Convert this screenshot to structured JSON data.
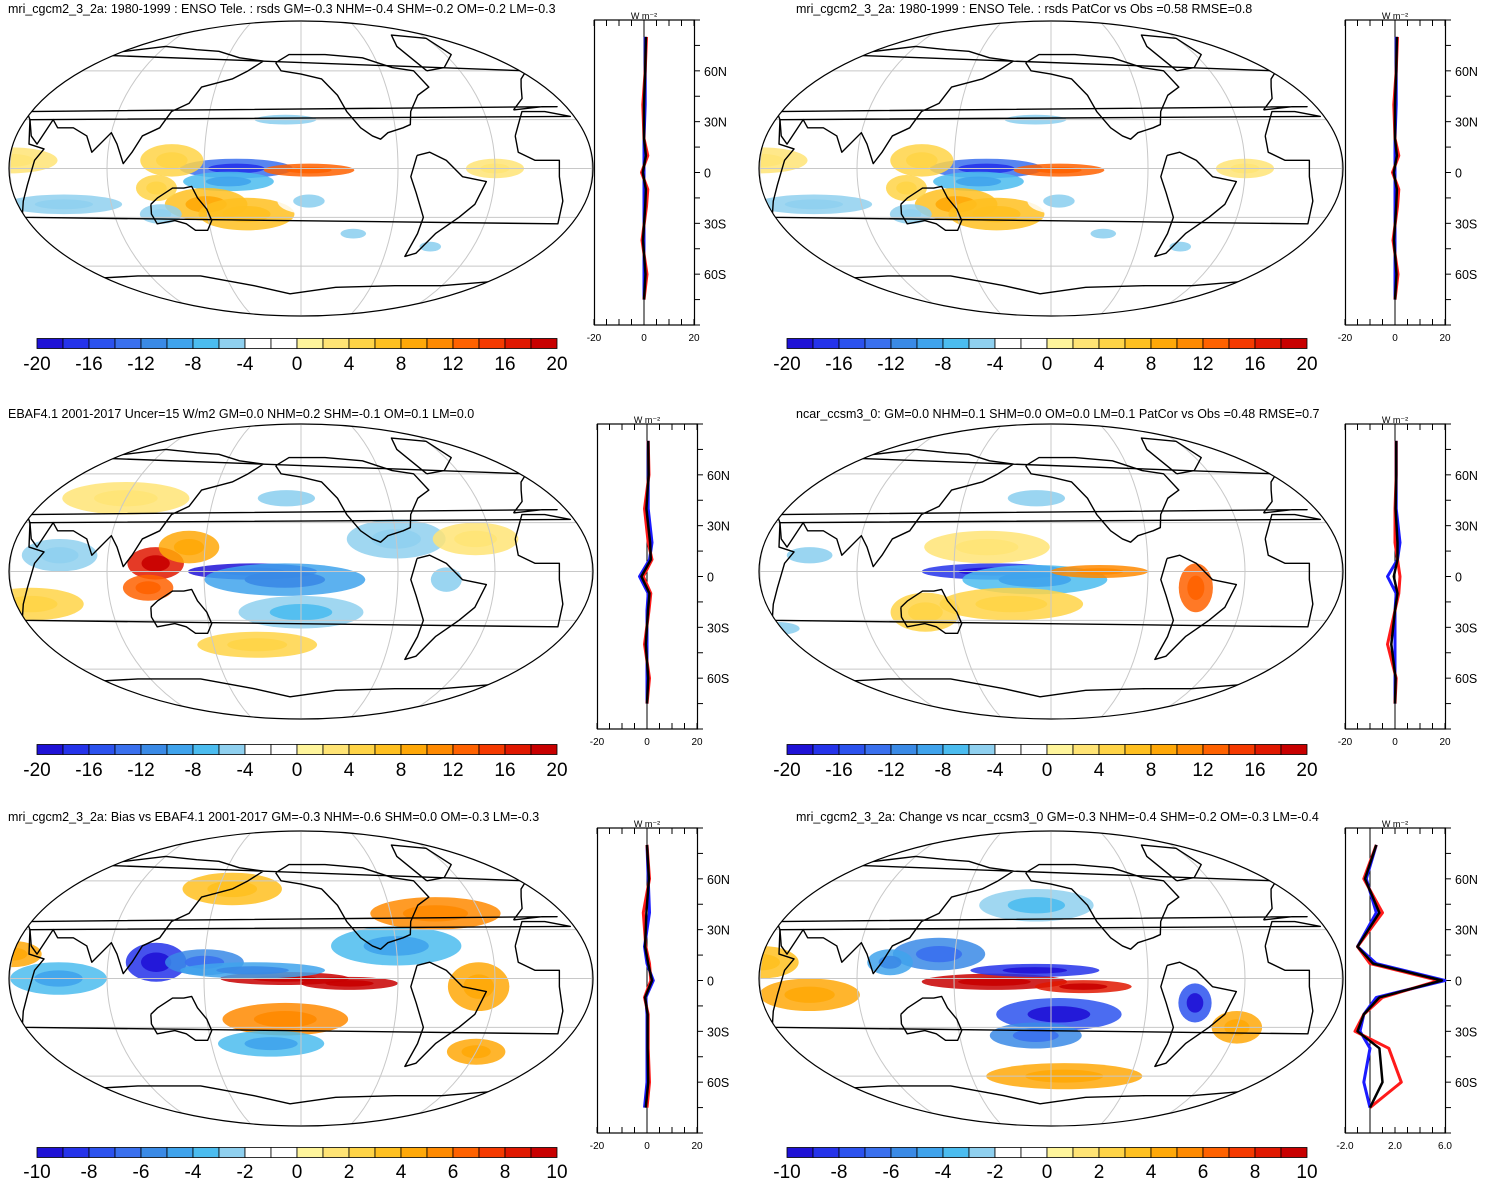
{
  "figure": "ENSO teleconnection maps of rsds",
  "colors": {
    "palette": [
      "#1f12d6",
      "#2533ea",
      "#2c52ee",
      "#3a70ee",
      "#3a8ae6",
      "#3fa3ec",
      "#4bbcef",
      "#8fd0ef",
      "#ffffff",
      "#ffffff",
      "#fff59c",
      "#ffe475",
      "#ffd447",
      "#ffc020",
      "#ffa808",
      "#ff8a00",
      "#ff6200",
      "#f53a00",
      "#e01800",
      "#c80000"
    ],
    "coast": "#000000",
    "grid": "#c8c8c8",
    "zonal_model": "#ff1a1a",
    "zonal_obs": "#1a1aff",
    "zonal_third": "#000000"
  },
  "panels": [
    {
      "id": "p1",
      "title": "mri_cgcm2_3_2a: 1980-1999 : ENSO Tele. : rsds GM=-0.3 NHM=-0.4 SHM=-0.2 OM=-0.2 LM=-0.3",
      "colorbar_labels": [
        "-20",
        "-16",
        "-12",
        "-8",
        "-4",
        "0",
        "4",
        "8",
        "12",
        "16",
        "20"
      ],
      "zonal": {
        "unit": "W m⁻²",
        "lat_labels": [
          "60N",
          "30N",
          "0",
          "30S",
          "60S"
        ],
        "x_labels": [
          "-20",
          "0",
          "20"
        ],
        "xlim": [
          -20,
          20
        ]
      }
    },
    {
      "id": "p2",
      "title": "mri_cgcm2_3_2a: 1980-1999 : ENSO Tele. : rsds PatCor vs Obs =0.58 RMSE=0.8",
      "colorbar_labels": [
        "-20",
        "-16",
        "-12",
        "-8",
        "-4",
        "0",
        "4",
        "8",
        "12",
        "16",
        "20"
      ],
      "zonal": {
        "unit": "W m⁻²",
        "lat_labels": [
          "60N",
          "30N",
          "0",
          "30S",
          "60S"
        ],
        "x_labels": [
          "-20",
          "0",
          "20"
        ],
        "xlim": [
          -20,
          20
        ]
      }
    },
    {
      "id": "p3",
      "title": "EBAF4.1 2001-2017 Uncer=15 W/m2 GM=0.0 NHM=0.2 SHM=-0.1 OM=0.1 LM=0.0",
      "colorbar_labels": [
        "-20",
        "-16",
        "-12",
        "-8",
        "-4",
        "0",
        "4",
        "8",
        "12",
        "16",
        "20"
      ],
      "zonal": {
        "unit": "W m⁻²",
        "lat_labels": [
          "60N",
          "30N",
          "0",
          "30S",
          "60S"
        ],
        "x_labels": [
          "-20",
          "0",
          "20"
        ],
        "xlim": [
          -20,
          20
        ]
      }
    },
    {
      "id": "p4",
      "title": "ncar_ccsm3_0: GM=0.0 NHM=0.1 SHM=0.0 OM=0.0 LM=0.1 PatCor vs Obs =0.48 RMSE=0.7",
      "colorbar_labels": [
        "-20",
        "-16",
        "-12",
        "-8",
        "-4",
        "0",
        "4",
        "8",
        "12",
        "16",
        "20"
      ],
      "zonal": {
        "unit": "W m⁻²",
        "lat_labels": [
          "60N",
          "30N",
          "0",
          "30S",
          "60S"
        ],
        "x_labels": [
          "-20",
          "0",
          "20"
        ],
        "xlim": [
          -20,
          20
        ]
      }
    },
    {
      "id": "p5",
      "title": "mri_cgcm2_3_2a: Bias vs EBAF4.1 2001-2017 GM=-0.3 NHM=-0.6 SHM=0.0 OM=-0.3 LM=-0.3",
      "colorbar_labels": [
        "-10",
        "-8",
        "-6",
        "-4",
        "-2",
        "0",
        "2",
        "4",
        "6",
        "8",
        "10"
      ],
      "zonal": {
        "unit": "W m⁻²",
        "lat_labels": [
          "60N",
          "30N",
          "0",
          "30S",
          "60S"
        ],
        "x_labels": [
          "-20",
          "0",
          "20"
        ],
        "xlim": [
          -20,
          20
        ]
      }
    },
    {
      "id": "p6",
      "title": "mri_cgcm2_3_2a: Change vs ncar_ccsm3_0 GM=-0.3 NHM=-0.4 SHM=-0.2 OM=-0.3 LM=-0.4",
      "colorbar_labels": [
        "-10",
        "-8",
        "-6",
        "-4",
        "-2",
        "0",
        "2",
        "4",
        "6",
        "8",
        "10"
      ],
      "zonal": {
        "unit": "W m⁻²",
        "lat_labels": [
          "60N",
          "30N",
          "0",
          "30S",
          "60S"
        ],
        "x_labels": [
          "-2.0",
          "2.0",
          "6.0"
        ],
        "xlim": [
          -2,
          6
        ]
      }
    }
  ],
  "chart_data": [
    {
      "type": "heatmap",
      "title": "mri_cgcm2_3_2a: 1980-1999 : ENSO Tele. : rsds GM=-0.3 NHM=-0.4 SHM=-0.2 OM=-0.2 LM=-0.3",
      "colorbar_ticks": [
        -20,
        -16,
        -12,
        -8,
        -4,
        0,
        4,
        8,
        12,
        16,
        20
      ],
      "features": [
        [
          170,
          0,
          35,
          6,
          -14
        ],
        [
          165,
          -8,
          28,
          6,
          -8
        ],
        [
          215,
          -1,
          28,
          4,
          12
        ],
        [
          130,
          5,
          20,
          10,
          5
        ],
        [
          150,
          -22,
          25,
          10,
          7
        ],
        [
          175,
          -28,
          30,
          10,
          6
        ],
        [
          120,
          -12,
          12,
          8,
          5
        ],
        [
          60,
          -22,
          35,
          6,
          -5
        ],
        [
          120,
          -28,
          12,
          6,
          -5
        ],
        [
          200,
          30,
          40,
          6,
          -4
        ],
        [
          215,
          -20,
          20,
          8,
          -4
        ],
        [
          30,
          5,
          30,
          8,
          3
        ],
        [
          330,
          0,
          18,
          6,
          3
        ],
        [
          245,
          -40,
          18,
          6,
          -4
        ],
        [
          300,
          -48,
          18,
          6,
          -4
        ]
      ],
      "zonal_mean": {
        "lat": [
          80,
          60,
          40,
          20,
          10,
          0,
          -10,
          -20,
          -40,
          -60,
          -75
        ],
        "model": [
          1.0,
          0.5,
          -0.5,
          0.0,
          1.5,
          -1.0,
          1.5,
          1.0,
          -0.8,
          1.2,
          0.0
        ],
        "obs": [
          0.5,
          0.5,
          0.5,
          0.0,
          0.0,
          0.0,
          0.0,
          0.0,
          0.0,
          0.0,
          0.0
        ]
      }
    },
    {
      "type": "heatmap",
      "title": "mri_cgcm2_3_2a: 1980-1999 : ENSO Tele. : rsds PatCor vs Obs =0.58 RMSE=0.8",
      "colorbar_ticks": [
        -20,
        -16,
        -12,
        -8,
        -4,
        0,
        4,
        8,
        12,
        16,
        20
      ],
      "features": [
        [
          170,
          0,
          35,
          6,
          -14
        ],
        [
          165,
          -8,
          28,
          6,
          -8
        ],
        [
          215,
          -1,
          28,
          4,
          12
        ],
        [
          130,
          5,
          20,
          10,
          5
        ],
        [
          150,
          -22,
          25,
          10,
          7
        ],
        [
          175,
          -28,
          30,
          10,
          6
        ],
        [
          120,
          -12,
          12,
          8,
          5
        ],
        [
          60,
          -22,
          35,
          6,
          -5
        ],
        [
          120,
          -28,
          12,
          6,
          -5
        ],
        [
          200,
          30,
          40,
          6,
          -4
        ],
        [
          215,
          -20,
          20,
          8,
          -4
        ],
        [
          30,
          5,
          30,
          8,
          3
        ],
        [
          330,
          0,
          18,
          6,
          3
        ],
        [
          245,
          -40,
          18,
          6,
          -4
        ],
        [
          300,
          -48,
          18,
          6,
          -4
        ]
      ],
      "zonal_mean": {
        "lat": [
          80,
          60,
          40,
          20,
          10,
          0,
          -10,
          -20,
          -40,
          -60,
          -75
        ],
        "model": [
          1.0,
          0.5,
          -0.5,
          0.0,
          1.5,
          -1.0,
          1.5,
          1.0,
          -0.8,
          1.2,
          0.0
        ],
        "obs": [
          0.5,
          0.5,
          0.5,
          0.0,
          0.0,
          0.0,
          0.0,
          0.0,
          0.0,
          0.0,
          0.0
        ]
      }
    },
    {
      "type": "heatmap",
      "title": "EBAF4.1 2001-2017 Uncer=15 W/m2 GM=0.0 NHM=0.2 SHM=-0.1 OM=0.1 LM=0.0",
      "colorbar_ticks": [
        -20,
        -16,
        -12,
        -8,
        -4,
        0,
        4,
        8,
        12,
        16,
        20
      ],
      "features": [
        [
          180,
          0,
          40,
          5,
          -20
        ],
        [
          200,
          -5,
          50,
          10,
          -10
        ],
        [
          210,
          -25,
          40,
          10,
          -6
        ],
        [
          120,
          5,
          18,
          10,
          16
        ],
        [
          115,
          -10,
          15,
          8,
          12
        ],
        [
          140,
          15,
          20,
          10,
          8
        ],
        [
          270,
          20,
          30,
          12,
          -5
        ],
        [
          60,
          10,
          25,
          10,
          -5
        ],
        [
          40,
          -20,
          30,
          10,
          4
        ],
        [
          320,
          20,
          25,
          10,
          3
        ],
        [
          200,
          45,
          40,
          10,
          -4
        ],
        [
          90,
          45,
          50,
          10,
          3
        ],
        [
          300,
          -5,
          20,
          15,
          -4
        ],
        [
          180,
          -45,
          40,
          8,
          4
        ]
      ],
      "zonal_mean": {
        "lat": [
          80,
          60,
          40,
          20,
          10,
          0,
          -10,
          -20,
          -40,
          -60,
          -75
        ],
        "model": [
          0.5,
          0.8,
          -1.0,
          0.5,
          2.0,
          -1.5,
          1.5,
          0.8,
          -1.0,
          1.0,
          0.0
        ],
        "obs": [
          0.5,
          0.5,
          0.5,
          2.0,
          1.0,
          -3.0,
          0.5,
          0.0,
          0.0,
          0.0,
          0.0
        ]
      }
    },
    {
      "type": "heatmap",
      "title": "ncar_ccsm3_0: GM=0.0 NHM=0.1 SHM=0.0 OM=0.0 LM=0.1 PatCor vs Obs =0.48 RMSE=0.7",
      "colorbar_ticks": [
        -20,
        -16,
        -12,
        -8,
        -4,
        0,
        4,
        8,
        12,
        16,
        20
      ],
      "features": [
        [
          175,
          0,
          45,
          5,
          -18
        ],
        [
          200,
          -5,
          45,
          9,
          -8
        ],
        [
          240,
          0,
          30,
          4,
          10
        ],
        [
          185,
          -20,
          45,
          10,
          5
        ],
        [
          170,
          15,
          40,
          10,
          3
        ],
        [
          130,
          -25,
          20,
          12,
          4
        ],
        [
          60,
          10,
          30,
          10,
          -4
        ],
        [
          300,
          -10,
          12,
          15,
          12
        ],
        [
          60,
          -20,
          30,
          8,
          -3
        ],
        [
          200,
          45,
          40,
          10,
          -4
        ],
        [
          30,
          -35,
          25,
          8,
          -4
        ]
      ],
      "zonal_mean": {
        "lat": [
          80,
          60,
          40,
          20,
          10,
          0,
          -10,
          -20,
          -40,
          -60,
          -75
        ],
        "model": [
          0.5,
          0.5,
          0.0,
          0.0,
          1.0,
          2.0,
          1.5,
          0.0,
          -3.0,
          0.5,
          0.0
        ],
        "obs": [
          0.5,
          0.5,
          0.5,
          2.0,
          1.0,
          -3.0,
          0.5,
          0.0,
          0.0,
          0.0,
          0.0
        ]
      }
    },
    {
      "type": "heatmap",
      "title": "mri_cgcm2_3_2a: Bias vs EBAF4.1 2001-2017 GM=-0.3 NHM=-0.6 SHM=0.0 OM=-0.3 LM=-0.3",
      "colorbar_ticks": [
        -10,
        -8,
        -6,
        -4,
        -2,
        0,
        2,
        4,
        6,
        8,
        10
      ],
      "features": [
        [
          200,
          0,
          40,
          4,
          9
        ],
        [
          240,
          -3,
          30,
          4,
          9
        ],
        [
          120,
          10,
          20,
          12,
          -9
        ],
        [
          150,
          10,
          25,
          8,
          -6
        ],
        [
          180,
          5,
          45,
          5,
          -5
        ],
        [
          200,
          -25,
          40,
          10,
          5
        ],
        [
          190,
          -40,
          35,
          8,
          -4
        ],
        [
          270,
          20,
          40,
          12,
          -4
        ],
        [
          300,
          40,
          40,
          10,
          5
        ],
        [
          60,
          0,
          30,
          10,
          -4
        ],
        [
          30,
          15,
          20,
          8,
          4
        ],
        [
          320,
          -5,
          20,
          15,
          4
        ],
        [
          160,
          55,
          40,
          10,
          3
        ],
        [
          330,
          -45,
          25,
          8,
          4
        ]
      ],
      "zonal_mean": {
        "lat": [
          80,
          60,
          40,
          20,
          10,
          0,
          -10,
          -20,
          -40,
          -60,
          -75
        ],
        "model": [
          0.0,
          1.0,
          -1.5,
          -0.5,
          1.0,
          1.5,
          -1.0,
          0.5,
          0.5,
          1.0,
          0.0
        ],
        "obs": [
          0.0,
          0.5,
          1.0,
          -1.0,
          0.0,
          2.5,
          -0.5,
          0.0,
          0.0,
          0.0,
          -1.0
        ]
      }
    },
    {
      "type": "heatmap",
      "title": "mri_cgcm2_3_2a: Change vs ncar_ccsm3_0 GM=-0.3 NHM=-0.4 SHM=-0.2 OM=-0.3 LM=-0.4",
      "colorbar_ticks": [
        -10,
        -8,
        -6,
        -4,
        -2,
        0,
        2,
        4,
        6,
        8,
        10
      ],
      "features": [
        [
          175,
          -2,
          45,
          5,
          10
        ],
        [
          230,
          -5,
          30,
          4,
          8
        ],
        [
          200,
          5,
          40,
          4,
          -9
        ],
        [
          215,
          -22,
          40,
          10,
          -8
        ],
        [
          200,
          -35,
          30,
          8,
          -6
        ],
        [
          140,
          15,
          30,
          10,
          -6
        ],
        [
          110,
          10,
          15,
          8,
          -5
        ],
        [
          300,
          -15,
          12,
          12,
          -8
        ],
        [
          60,
          -10,
          30,
          10,
          4
        ],
        [
          30,
          10,
          25,
          10,
          3
        ],
        [
          200,
          45,
          40,
          10,
          -3
        ],
        [
          220,
          -60,
          60,
          8,
          4
        ],
        [
          330,
          -30,
          20,
          10,
          4
        ]
      ],
      "zonal_mean": {
        "lat": [
          80,
          60,
          40,
          20,
          10,
          0,
          -10,
          -20,
          -30,
          -40,
          -60,
          -75
        ],
        "model": [
          0.5,
          -0.5,
          1.0,
          -1.0,
          0.0,
          5.5,
          1.0,
          -0.5,
          -1.2,
          1.5,
          2.5,
          0.0
        ],
        "obs": [
          0.5,
          -0.3,
          0.5,
          -1.0,
          0.5,
          6.0,
          0.5,
          -0.5,
          -0.8,
          0.0,
          -0.5,
          0.0
        ]
      }
    }
  ]
}
